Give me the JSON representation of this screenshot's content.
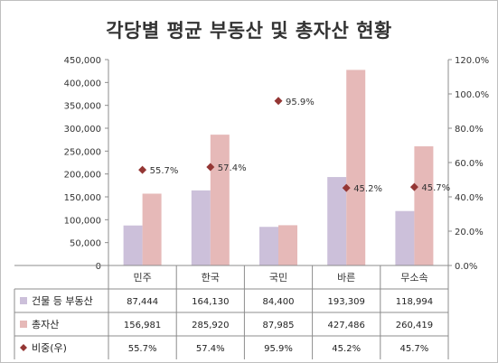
{
  "chart_data": {
    "type": "bar",
    "title": "각당별 평균 부동산 및 총자산 현황",
    "categories": [
      "민주",
      "한국",
      "국민",
      "바른",
      "무소속"
    ],
    "series": [
      {
        "name": "건물 등 부동산",
        "type": "bar",
        "axis": "left",
        "color": "#ccc0da",
        "values": [
          87444,
          164130,
          84400,
          193309,
          118994
        ],
        "labels": [
          "87,444",
          "164,130",
          "84,400",
          "193,309",
          "118,994"
        ]
      },
      {
        "name": "총자산",
        "type": "bar",
        "axis": "left",
        "color": "#e6b9b8",
        "values": [
          156981,
          285920,
          87985,
          427486,
          260419
        ],
        "labels": [
          "156,981",
          "285,920",
          "87,985",
          "427,486",
          "260,419"
        ]
      },
      {
        "name": "비중(우)",
        "type": "scatter",
        "marker": "diamond",
        "axis": "right",
        "color": "#943634",
        "values": [
          55.7,
          57.4,
          95.9,
          45.2,
          45.7
        ],
        "labels": [
          "55.7%",
          "57.4%",
          "95.9%",
          "45.2%",
          "45.7%"
        ]
      }
    ],
    "ylim": [
      0,
      450000
    ],
    "y_ticks": [
      "0",
      "50,000",
      "100,000",
      "150,000",
      "200,000",
      "250,000",
      "300,000",
      "350,000",
      "400,000",
      "450,000"
    ],
    "y2lim": [
      0,
      120
    ],
    "y2_ticks": [
      "0.0%",
      "20.0%",
      "40.0%",
      "60.0%",
      "80.0%",
      "100.0%",
      "120.0%"
    ],
    "grid": false,
    "legend": "data-table"
  }
}
